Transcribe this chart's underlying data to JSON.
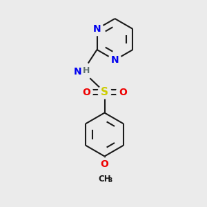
{
  "bg_color": "#ebebeb",
  "bond_color": "#1a1a1a",
  "bond_width": 1.5,
  "atom_colors": {
    "N": "#0000ee",
    "O": "#ee0000",
    "S": "#cccc00",
    "H": "#607070",
    "C": "#1a1a1a"
  },
  "fig_size": [
    3.0,
    3.0
  ],
  "dpi": 100,
  "xlim": [
    0,
    10
  ],
  "ylim": [
    0,
    10
  ]
}
